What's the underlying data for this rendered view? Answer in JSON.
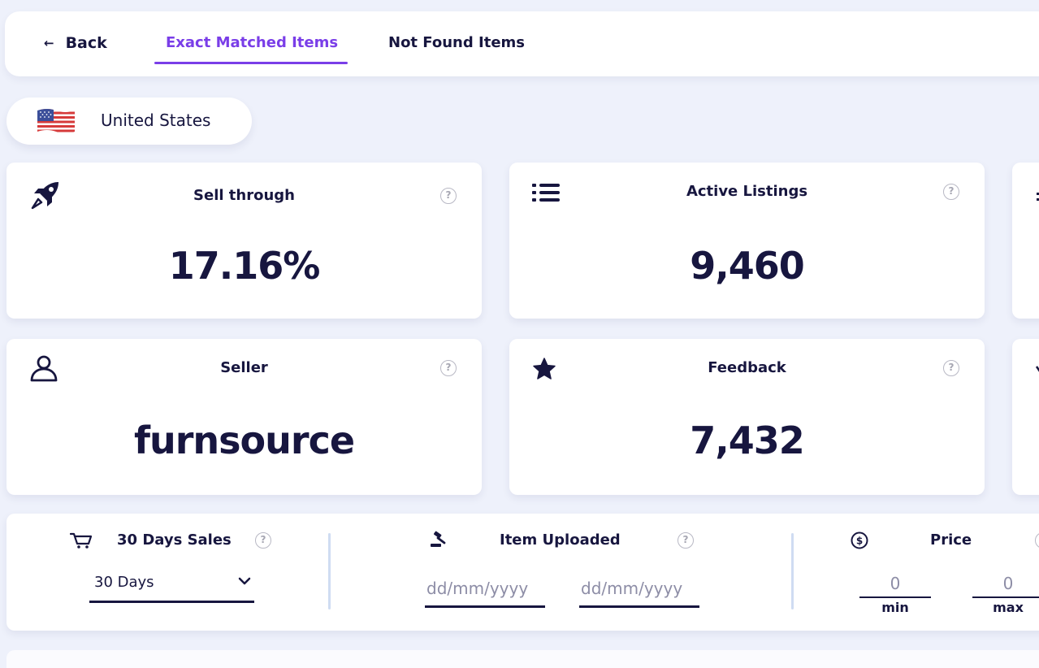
{
  "nav": {
    "back_label": "Back",
    "tabs": [
      {
        "label": "Exact Matched Items",
        "active": true
      },
      {
        "label": "Not Found Items",
        "active": false
      }
    ]
  },
  "country": {
    "name": "United States",
    "flag_icon": "us-flag-icon"
  },
  "cards": {
    "sell_through": {
      "title": "Sell through",
      "value": "17.16%",
      "icon": "rocket-icon"
    },
    "active_listings": {
      "title": "Active Listings",
      "value": "9,460",
      "icon": "list-icon"
    },
    "seller": {
      "title": "Seller",
      "value": "furnsource",
      "icon": "user-icon"
    },
    "feedback": {
      "title": "Feedback",
      "value": "7,432",
      "icon": "star-icon"
    }
  },
  "filters": {
    "sales": {
      "title": "30 Days Sales",
      "selected": "30 Days",
      "icon": "cart-icon"
    },
    "uploaded": {
      "title": "Item Uploaded",
      "from_placeholder": "dd/mm/yyyy",
      "to_placeholder": "dd/mm/yyyy",
      "icon": "gavel-icon"
    },
    "price": {
      "title": "Price",
      "min_placeholder": "0",
      "max_placeholder": "0",
      "min_label": "min",
      "max_label": "max",
      "icon": "dollar-icon"
    }
  },
  "help_glyph": "?",
  "colors": {
    "accent": "#7a3ee8",
    "text": "#17163f",
    "background": "#eef1fb"
  }
}
